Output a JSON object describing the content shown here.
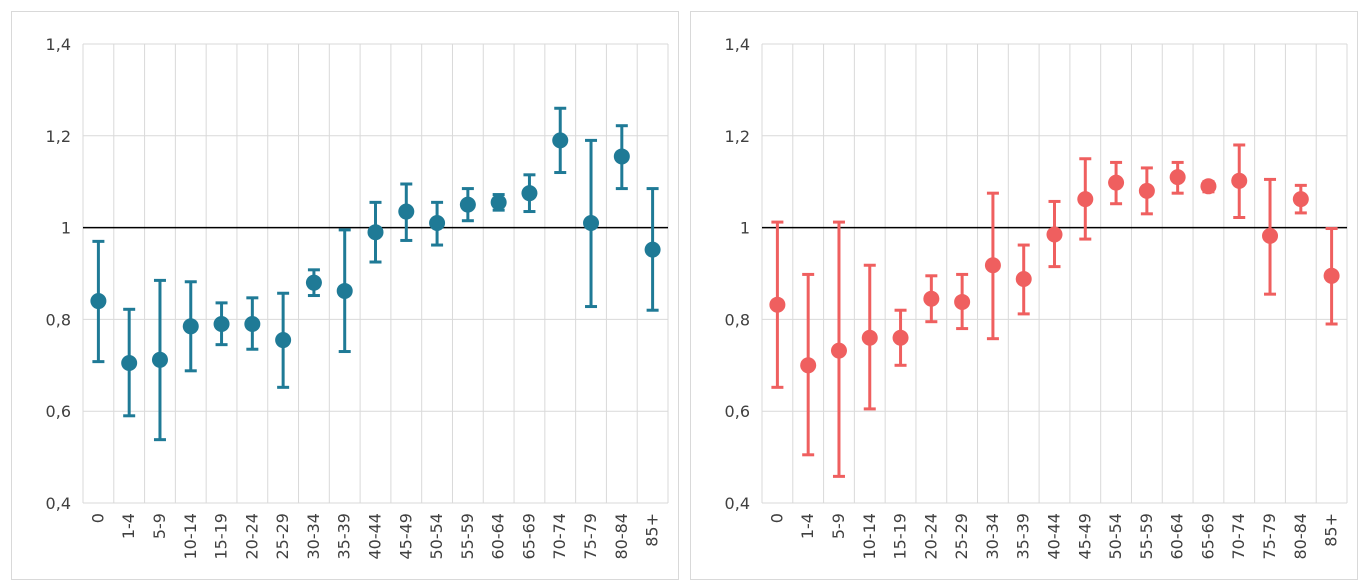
{
  "chart_data": [
    {
      "type": "scatter",
      "title": "",
      "xlabel": "",
      "ylabel": "",
      "ylim": [
        0.4,
        1.4
      ],
      "yticks": [
        "0,4",
        "0,6",
        "0,8",
        "1",
        "1,2",
        "1,4"
      ],
      "ytick_values": [
        0.4,
        0.6,
        0.8,
        1.0,
        1.2,
        1.4
      ],
      "reference_line": 1,
      "grid": true,
      "legend": "none",
      "color": "#1f7a96",
      "categories": [
        "0",
        "1-4",
        "5-9",
        "10-14",
        "15-19",
        "20-24",
        "25-29",
        "30-34",
        "35-39",
        "40-44",
        "45-49",
        "50-54",
        "55-59",
        "60-64",
        "65-69",
        "70-74",
        "75-79",
        "80-84",
        "85+"
      ],
      "values": [
        0.84,
        0.705,
        0.712,
        0.785,
        0.79,
        0.79,
        0.755,
        0.88,
        0.862,
        0.99,
        1.035,
        1.01,
        1.05,
        1.055,
        1.075,
        1.19,
        1.01,
        1.155,
        0.952
      ],
      "lower": [
        0.708,
        0.59,
        0.538,
        0.688,
        0.745,
        0.735,
        0.652,
        0.852,
        0.73,
        0.925,
        0.972,
        0.962,
        1.015,
        1.038,
        1.035,
        1.12,
        0.828,
        1.085,
        0.82
      ],
      "upper": [
        0.97,
        0.822,
        0.885,
        0.882,
        0.836,
        0.847,
        0.857,
        0.908,
        0.995,
        1.055,
        1.095,
        1.055,
        1.085,
        1.072,
        1.115,
        1.26,
        1.19,
        1.222,
        1.085
      ]
    },
    {
      "type": "scatter",
      "title": "",
      "xlabel": "",
      "ylabel": "",
      "ylim": [
        0.4,
        1.4
      ],
      "yticks": [
        "0,4",
        "0,6",
        "0,8",
        "1",
        "1,2",
        "1,4"
      ],
      "ytick_values": [
        0.4,
        0.6,
        0.8,
        1.0,
        1.2,
        1.4
      ],
      "reference_line": 1,
      "grid": true,
      "legend": "none",
      "color": "#ef5f5f",
      "categories": [
        "0",
        "1-4",
        "5-9",
        "10-14",
        "15-19",
        "20-24",
        "25-29",
        "30-34",
        "35-39",
        "40-44",
        "45-49",
        "50-54",
        "55-59",
        "60-64",
        "65-69",
        "70-74",
        "75-79",
        "80-84",
        "85+"
      ],
      "values": [
        0.832,
        0.7,
        0.732,
        0.76,
        0.76,
        0.845,
        0.838,
        0.918,
        0.888,
        0.985,
        1.062,
        1.098,
        1.08,
        1.11,
        1.09,
        1.102,
        0.982,
        1.062,
        0.895
      ],
      "lower": [
        0.652,
        0.505,
        0.458,
        0.605,
        0.7,
        0.795,
        0.78,
        0.758,
        0.812,
        0.915,
        0.975,
        1.052,
        1.03,
        1.075,
        1.078,
        1.022,
        0.855,
        1.032,
        0.79
      ],
      "upper": [
        1.012,
        0.898,
        1.012,
        0.918,
        0.82,
        0.895,
        0.898,
        1.075,
        0.962,
        1.057,
        1.15,
        1.142,
        1.13,
        1.142,
        1.1,
        1.18,
        1.105,
        1.092,
        0.998
      ]
    }
  ]
}
